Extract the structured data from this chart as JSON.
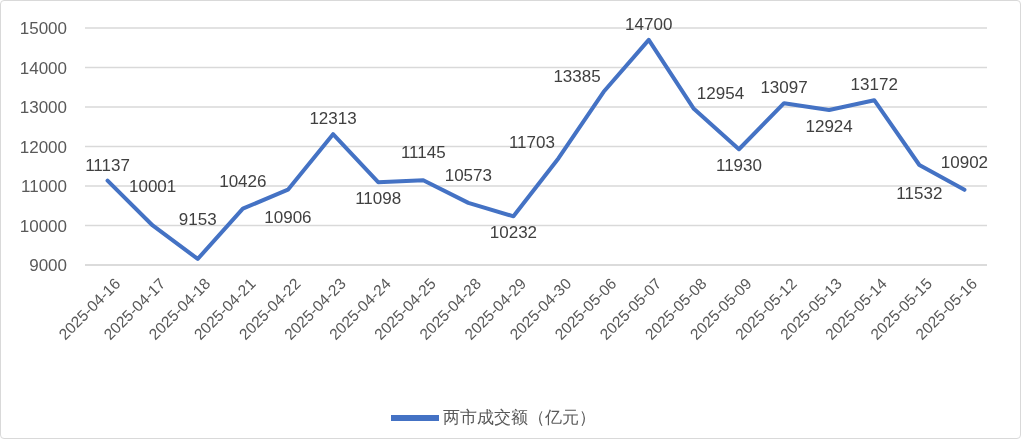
{
  "chart_data": {
    "type": "line",
    "categories": [
      "2025-04-16",
      "2025-04-17",
      "2025-04-18",
      "2025-04-21",
      "2025-04-22",
      "2025-04-23",
      "2025-04-24",
      "2025-04-25",
      "2025-04-28",
      "2025-04-29",
      "2025-04-30",
      "2025-05-06",
      "2025-05-07",
      "2025-05-08",
      "2025-05-09",
      "2025-05-12",
      "2025-05-13",
      "2025-05-14",
      "2025-05-15",
      "2025-05-16"
    ],
    "series": [
      {
        "name": "两市成交额（亿元）",
        "color": "#4472c4",
        "values": [
          11137,
          10001,
          9153,
          10426,
          10906,
          12313,
          11098,
          11145,
          10573,
          10232,
          11703,
          13385,
          14700,
          12954,
          11930,
          13097,
          12924,
          13172,
          11532,
          10902
        ]
      }
    ],
    "ylim": [
      9000,
      15000
    ],
    "yticks": [
      9000,
      10000,
      11000,
      12000,
      13000,
      14000,
      15000
    ],
    "grid": "y",
    "legend": "bottom",
    "data_labels": true,
    "marker": "none",
    "line_style": "solid"
  }
}
